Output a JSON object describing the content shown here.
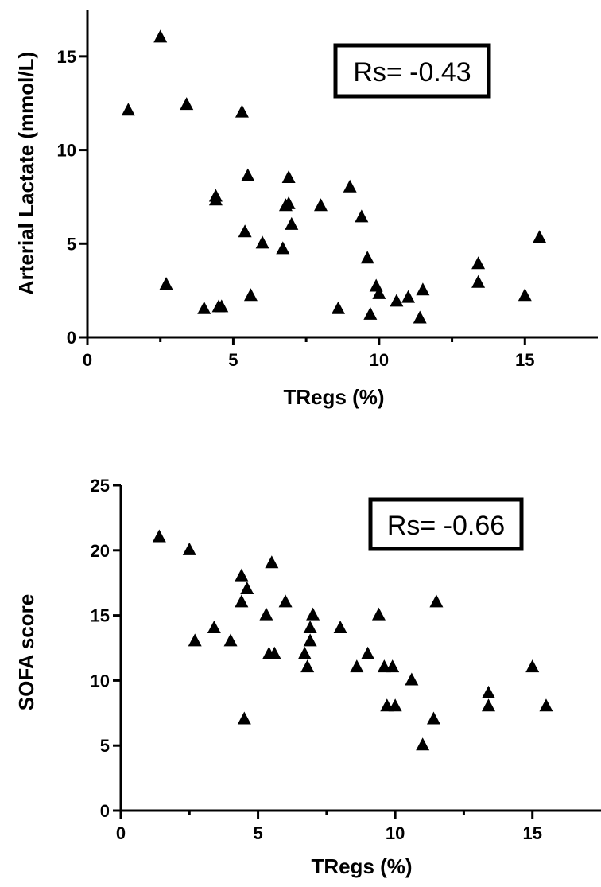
{
  "chart_data": [
    {
      "type": "scatter",
      "xlabel": "TRegs (%)",
      "ylabel": "Arterial Lactate (mmol/L)",
      "xlim": [
        0,
        17.5
      ],
      "ylim": [
        0,
        17.5
      ],
      "xticks": [
        0,
        5,
        10,
        15
      ],
      "yticks": [
        0,
        5,
        10,
        15
      ],
      "xtick_labels": [
        "0",
        "5",
        "10",
        "15"
      ],
      "ytick_labels": [
        "0",
        "5",
        "10",
        "15"
      ],
      "marker": "triangle",
      "grid": false,
      "annotation": "Rs= -0.43",
      "points": [
        {
          "x": 1.4,
          "y": 12.1
        },
        {
          "x": 2.5,
          "y": 16.0
        },
        {
          "x": 2.7,
          "y": 2.8
        },
        {
          "x": 3.4,
          "y": 12.4
        },
        {
          "x": 4.0,
          "y": 1.5
        },
        {
          "x": 4.4,
          "y": 7.3
        },
        {
          "x": 4.4,
          "y": 7.5
        },
        {
          "x": 4.5,
          "y": 1.6
        },
        {
          "x": 4.6,
          "y": 1.6
        },
        {
          "x": 5.3,
          "y": 12.0
        },
        {
          "x": 5.4,
          "y": 5.6
        },
        {
          "x": 5.5,
          "y": 8.6
        },
        {
          "x": 5.6,
          "y": 2.2
        },
        {
          "x": 6.0,
          "y": 5.0
        },
        {
          "x": 6.7,
          "y": 4.7
        },
        {
          "x": 6.8,
          "y": 7.0
        },
        {
          "x": 6.9,
          "y": 7.1
        },
        {
          "x": 6.9,
          "y": 8.5
        },
        {
          "x": 7.0,
          "y": 6.0
        },
        {
          "x": 8.0,
          "y": 7.0
        },
        {
          "x": 8.6,
          "y": 1.5
        },
        {
          "x": 9.0,
          "y": 8.0
        },
        {
          "x": 9.4,
          "y": 6.4
        },
        {
          "x": 9.6,
          "y": 4.2
        },
        {
          "x": 9.7,
          "y": 1.2
        },
        {
          "x": 9.9,
          "y": 2.7
        },
        {
          "x": 10.0,
          "y": 2.3
        },
        {
          "x": 10.6,
          "y": 1.9
        },
        {
          "x": 11.0,
          "y": 2.1
        },
        {
          "x": 11.4,
          "y": 1.0
        },
        {
          "x": 11.5,
          "y": 2.5
        },
        {
          "x": 13.4,
          "y": 3.9
        },
        {
          "x": 13.4,
          "y": 2.9
        },
        {
          "x": 15.0,
          "y": 2.2
        },
        {
          "x": 15.5,
          "y": 5.3
        }
      ]
    },
    {
      "type": "scatter",
      "xlabel": "TRegs (%)",
      "ylabel": "SOFA score",
      "xlim": [
        0,
        17.5
      ],
      "ylim": [
        0,
        25
      ],
      "xticks": [
        0,
        5,
        10,
        15
      ],
      "yticks": [
        0,
        5,
        10,
        15,
        20,
        25
      ],
      "xtick_labels": [
        "0",
        "5",
        "10",
        "15"
      ],
      "ytick_labels": [
        "0",
        "5",
        "10",
        "15",
        "20",
        "25"
      ],
      "marker": "triangle",
      "grid": false,
      "annotation": "Rs= -0.66",
      "points": [
        {
          "x": 1.4,
          "y": 21
        },
        {
          "x": 2.5,
          "y": 20
        },
        {
          "x": 2.7,
          "y": 13
        },
        {
          "x": 3.4,
          "y": 14
        },
        {
          "x": 4.0,
          "y": 13
        },
        {
          "x": 4.4,
          "y": 18
        },
        {
          "x": 4.4,
          "y": 16
        },
        {
          "x": 4.6,
          "y": 17
        },
        {
          "x": 4.5,
          "y": 7
        },
        {
          "x": 5.3,
          "y": 15
        },
        {
          "x": 5.4,
          "y": 12
        },
        {
          "x": 5.5,
          "y": 19
        },
        {
          "x": 5.6,
          "y": 12
        },
        {
          "x": 6.0,
          "y": 16
        },
        {
          "x": 6.7,
          "y": 12
        },
        {
          "x": 6.8,
          "y": 11
        },
        {
          "x": 6.9,
          "y": 13
        },
        {
          "x": 6.9,
          "y": 14
        },
        {
          "x": 7.0,
          "y": 15
        },
        {
          "x": 8.0,
          "y": 14
        },
        {
          "x": 8.6,
          "y": 11
        },
        {
          "x": 9.0,
          "y": 12
        },
        {
          "x": 9.4,
          "y": 15
        },
        {
          "x": 9.6,
          "y": 11
        },
        {
          "x": 9.7,
          "y": 8
        },
        {
          "x": 9.9,
          "y": 11
        },
        {
          "x": 10.0,
          "y": 8
        },
        {
          "x": 10.6,
          "y": 10
        },
        {
          "x": 11.0,
          "y": 5
        },
        {
          "x": 11.4,
          "y": 7
        },
        {
          "x": 11.5,
          "y": 16
        },
        {
          "x": 13.4,
          "y": 9
        },
        {
          "x": 13.4,
          "y": 8
        },
        {
          "x": 15.0,
          "y": 11
        },
        {
          "x": 15.5,
          "y": 8
        }
      ]
    }
  ]
}
